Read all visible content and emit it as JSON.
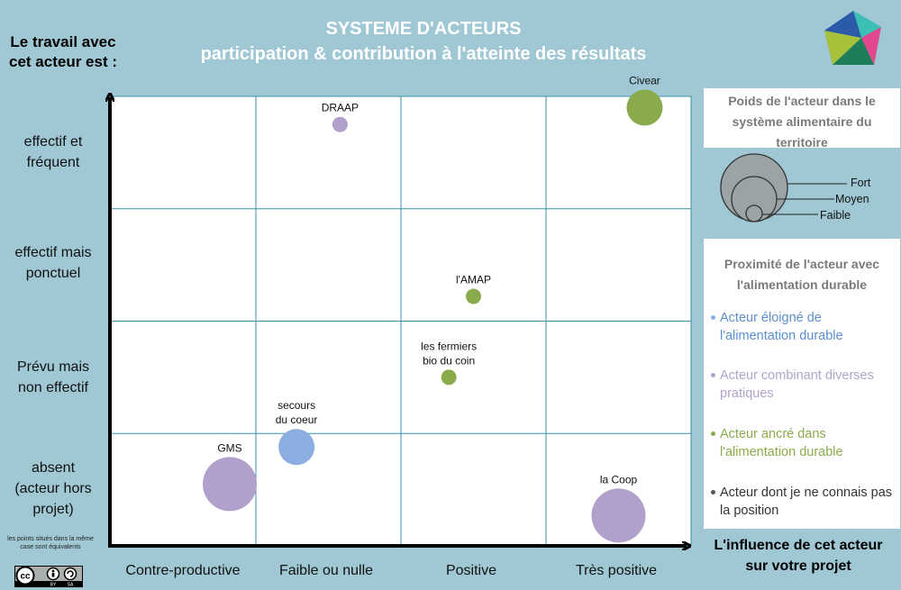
{
  "title": {
    "line1": "SYSTEME D'ACTEURS",
    "line2": "participation & contribution à l'atteinte des résultats"
  },
  "y_axis": {
    "title_line1": "Le travail avec",
    "title_line2": "cet acteur est :",
    "ticks": [
      {
        "line1": "effectif et",
        "line2": "fréquent",
        "line3": ""
      },
      {
        "line1": "effectif mais",
        "line2": "ponctuel",
        "line3": ""
      },
      {
        "line1": "Prévu mais",
        "line2": "non effectif",
        "line3": ""
      },
      {
        "line1": "absent",
        "line2": "(acteur hors",
        "line3": "projet)"
      }
    ]
  },
  "x_axis": {
    "title_line1": "L'influence de cet acteur",
    "title_line2": "sur votre projet",
    "ticks": [
      "Contre-productive",
      "Faible ou nulle",
      "Positive",
      "Très positive"
    ]
  },
  "note": "les points situés dans la même case sont équivalents",
  "license": {
    "cc": "cc",
    "by": "BY",
    "sa": "SA"
  },
  "colors": {
    "background": "#9fc8d4",
    "blue": "#8aaee0",
    "purple": "#b19fcc",
    "green": "#8aab4b",
    "grid": "#3d8fa8"
  },
  "legend_size": {
    "title_line1": "Poids de l'acteur dans le",
    "title_line2": "système alimentaire du",
    "title_line3": "territoire",
    "fort": "Fort",
    "moyen": "Moyen",
    "faible": "Faible"
  },
  "legend_proximity": {
    "title_line1": "Proximité de l'acteur avec",
    "title_line2": "l'alimentation durable",
    "items": [
      {
        "line1": "Acteur éloigné de",
        "line2": "l'alimentation durable",
        "color": "#5b8fcf",
        "dot": "#8aaee0"
      },
      {
        "line1": "Acteur combinant diverses",
        "line2": "pratiques",
        "color": "#b1a4cc",
        "dot": "#b19fcc"
      },
      {
        "line1": "Acteur ancré dans",
        "line2": "l'alimentation durable",
        "color": "#8aab4b",
        "dot": "#8aab4b"
      },
      {
        "line1": "Acteur dont je ne connais pas",
        "line2": "la position",
        "color": "#333333",
        "dot": "#555555"
      }
    ]
  },
  "chart_data": {
    "type": "scatter",
    "x_categories": [
      "Contre-productive",
      "Faible ou nulle",
      "Positive",
      "Très positive"
    ],
    "y_categories": [
      "absent (acteur hors projet)",
      "Prévu mais non effectif",
      "effectif mais ponctuel",
      "effectif et fréquent"
    ],
    "xlim": [
      0,
      4
    ],
    "ylim": [
      0,
      4
    ],
    "grid": true,
    "points": [
      {
        "label_line1": "DRAAP",
        "label_line2": "",
        "x": 1.58,
        "y": 3.75,
        "size": "Faible",
        "group": "purple"
      },
      {
        "label_line1": "Civear",
        "label_line2": "",
        "x": 3.68,
        "y": 3.9,
        "size": "Moyen",
        "group": "green"
      },
      {
        "label_line1": "l'AMAP",
        "label_line2": "",
        "x": 2.5,
        "y": 2.22,
        "size": "Faible",
        "group": "green"
      },
      {
        "label_line1": "les fermiers",
        "label_line2": "bio du coin",
        "x": 2.33,
        "y": 1.5,
        "size": "Faible",
        "group": "green"
      },
      {
        "label_line1": "secours",
        "label_line2": "du coeur",
        "x": 1.28,
        "y": 0.88,
        "size": "Moyen",
        "group": "blue"
      },
      {
        "label_line1": "GMS",
        "label_line2": "",
        "x": 0.82,
        "y": 0.55,
        "size": "Fort",
        "group": "purple"
      },
      {
        "label_line1": "la Coop",
        "label_line2": "",
        "x": 3.5,
        "y": 0.27,
        "size": "Fort",
        "group": "purple"
      }
    ]
  }
}
